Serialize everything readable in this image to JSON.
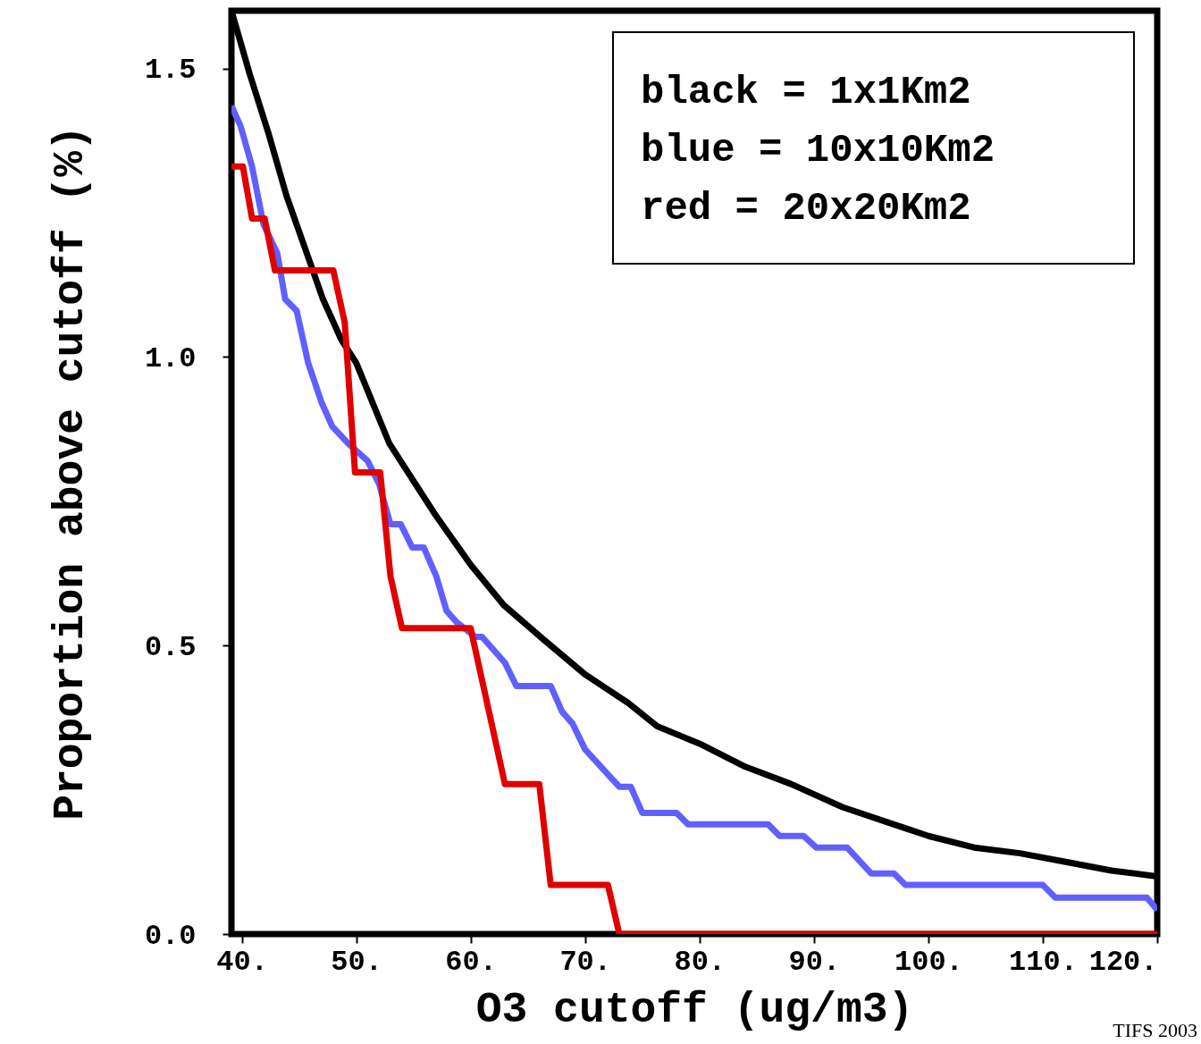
{
  "chart_data": {
    "type": "line",
    "xlabel": "O3 cutoff (ug/m3)",
    "ylabel": "Proportion above cutoff (%)",
    "xlim": [
      39.1,
      120
    ],
    "ylim": [
      0,
      1.6
    ],
    "xticks": [
      {
        "value": 40,
        "label": "40."
      },
      {
        "value": 50,
        "label": "50."
      },
      {
        "value": 60,
        "label": "60."
      },
      {
        "value": 70,
        "label": "70."
      },
      {
        "value": 80,
        "label": "80."
      },
      {
        "value": 90,
        "label": "90."
      },
      {
        "value": 100,
        "label": "100."
      },
      {
        "value": 110,
        "label": "110."
      },
      {
        "value": 120,
        "label": "120."
      }
    ],
    "yticks": [
      {
        "value": 0,
        "label": "0.0"
      },
      {
        "value": 0.5,
        "label": "0.5"
      },
      {
        "value": 1,
        "label": "1.0"
      },
      {
        "value": 1.5,
        "label": "1.5"
      }
    ],
    "grid": false,
    "marker": "none",
    "line_style": "solid",
    "annotations": [
      "black =  1x1Km2",
      "blue  = 10x10Km2",
      "red   = 20x20Km2",
      "TIFS 2003"
    ],
    "series": [
      {
        "color": "#000000",
        "x": [
          39.1,
          40.7,
          42.3,
          43.9,
          45.5,
          47.1,
          48.7,
          50,
          52.9,
          56.8,
          60,
          62.9,
          66.4,
          70,
          73.8,
          76.3,
          80,
          84,
          88,
          92.5,
          97,
          100,
          104,
          108,
          112,
          116,
          120
        ],
        "values": [
          1.6,
          1.49,
          1.39,
          1.28,
          1.19,
          1.1,
          1.03,
          0.99,
          0.85,
          0.73,
          0.64,
          0.57,
          0.51,
          0.45,
          0.4,
          0.36,
          0.33,
          0.29,
          0.26,
          0.22,
          0.19,
          0.17,
          0.15,
          0.14,
          0.125,
          0.11,
          0.1
        ]
      },
      {
        "color": "#6060ff",
        "x": [
          39.1,
          39.9,
          40.9,
          41.9,
          43.1,
          43.8,
          44.8,
          45.8,
          47,
          47.9,
          49.3,
          51,
          52,
          53,
          53.9,
          54.9,
          55.9,
          57,
          57.9,
          58.8,
          60.4,
          61,
          63,
          64,
          67,
          68,
          68.9,
          70,
          73,
          74,
          75,
          78,
          79,
          86,
          87,
          89.1,
          90.2,
          92.9,
          95,
          97,
          98,
          110,
          111.1,
          119.1,
          120
        ],
        "values": [
          1.435,
          1.4,
          1.33,
          1.23,
          1.18,
          1.1,
          1.08,
          0.99,
          0.92,
          0.88,
          0.85,
          0.82,
          0.78,
          0.71,
          0.71,
          0.67,
          0.67,
          0.62,
          0.56,
          0.54,
          0.515,
          0.515,
          0.47,
          0.43,
          0.43,
          0.385,
          0.365,
          0.32,
          0.255,
          0.255,
          0.21,
          0.21,
          0.19,
          0.19,
          0.17,
          0.17,
          0.15,
          0.15,
          0.105,
          0.105,
          0.085,
          0.085,
          0.063,
          0.063,
          0.042
        ]
      },
      {
        "color": "#e00000",
        "x": [
          39.1,
          40.1,
          40.9,
          42,
          42.9,
          48,
          49,
          49.9,
          52.1,
          53,
          54,
          60,
          63,
          66,
          67,
          72,
          73,
          120
        ],
        "values": [
          1.33,
          1.33,
          1.24,
          1.24,
          1.15,
          1.15,
          1.06,
          0.8,
          0.8,
          0.62,
          0.53,
          0.53,
          0.26,
          0.26,
          0.085,
          0.085,
          0,
          0
        ]
      }
    ]
  }
}
